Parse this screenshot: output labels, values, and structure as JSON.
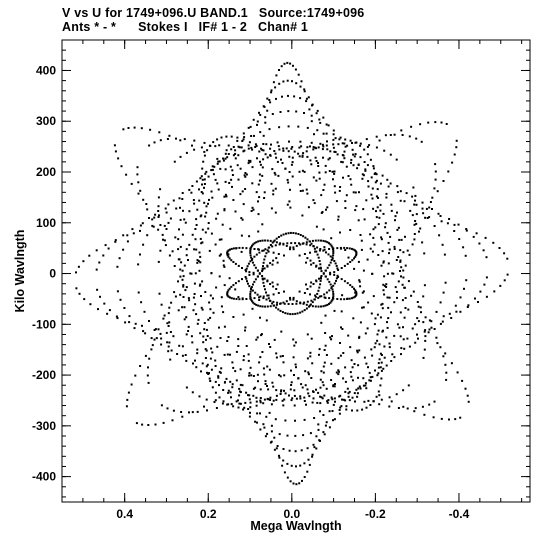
{
  "chart_data": {
    "type": "scatter",
    "title_line1": "V vs U for 1749+096.U BAND.1   Source:1749+096",
    "title_line2": "Ants * - *      Stokes I   IF# 1 - 2   Chan# 1",
    "xlabel": "Mega Wavlngth",
    "ylabel": "Kilo Wavlngth",
    "xlim": [
      0.55,
      -0.57
    ],
    "ylim": [
      -450,
      460
    ],
    "x_ticks": [
      {
        "value": 0.4,
        "label": "0.4"
      },
      {
        "value": 0.2,
        "label": "0.2"
      },
      {
        "value": 0.0,
        "label": "0.0"
      },
      {
        "value": -0.2,
        "label": "-0.2"
      },
      {
        "value": -0.4,
        "label": "-0.4"
      }
    ],
    "y_ticks": [
      {
        "value": 400,
        "label": "400"
      },
      {
        "value": 300,
        "label": "300"
      },
      {
        "value": 200,
        "label": "200"
      },
      {
        "value": 100,
        "label": "100"
      },
      {
        "value": 0,
        "label": "0"
      },
      {
        "value": -100,
        "label": "-100"
      },
      {
        "value": -200,
        "label": "-200"
      },
      {
        "value": -300,
        "label": "-300"
      },
      {
        "value": -400,
        "label": "-400"
      }
    ],
    "x_minor_step": 0.05,
    "y_minor_step": 20,
    "grid": false,
    "point_color": "#000000",
    "uv_tracks": {
      "description": "Elliptical u-v coverage arcs; each baseline traces an arc from hour angle hmin to hmax and its conjugate mirror (-u,-v).",
      "baselines": [
        {
          "a": 0.52,
          "b": 130,
          "rot": -1.5,
          "hmin": -1.45,
          "hmax": 1.45
        },
        {
          "a": 0.47,
          "b": 165,
          "rot": -1.5,
          "hmin": -1.45,
          "hmax": 1.45
        },
        {
          "a": 0.42,
          "b": 200,
          "rot": -1.5,
          "hmin": -1.45,
          "hmax": 1.45
        },
        {
          "a": 0.37,
          "b": 230,
          "rot": -1.5,
          "hmin": -1.45,
          "hmax": 1.45
        },
        {
          "a": 0.32,
          "b": 260,
          "rot": -1.5,
          "hmin": -1.45,
          "hmax": 1.45
        },
        {
          "a": 0.27,
          "b": 290,
          "rot": -1.5,
          "hmin": -1.45,
          "hmax": 1.45
        },
        {
          "a": 0.22,
          "b": 320,
          "rot": -1.5,
          "hmin": -1.45,
          "hmax": 1.45
        },
        {
          "a": 0.17,
          "b": 350,
          "rot": -1.5,
          "hmin": -1.45,
          "hmax": 1.45
        },
        {
          "a": 0.12,
          "b": 380,
          "rot": -1.5,
          "hmin": -1.45,
          "hmax": 1.45
        },
        {
          "a": 0.08,
          "b": 415,
          "rot": -1.5,
          "hmin": -1.45,
          "hmax": 1.45
        },
        {
          "a": 0.5,
          "b": 110,
          "rot": 33,
          "hmin": -1.4,
          "hmax": 1.4
        },
        {
          "a": 0.43,
          "b": 150,
          "rot": 33,
          "hmin": -1.4,
          "hmax": 1.4
        },
        {
          "a": 0.36,
          "b": 190,
          "rot": 33,
          "hmin": -1.4,
          "hmax": 1.4
        },
        {
          "a": 0.29,
          "b": 225,
          "rot": 33,
          "hmin": -1.4,
          "hmax": 1.4
        },
        {
          "a": 0.22,
          "b": 260,
          "rot": 33,
          "hmin": -1.4,
          "hmax": 1.4
        },
        {
          "a": 0.15,
          "b": 300,
          "rot": 33,
          "hmin": -1.4,
          "hmax": 1.4
        },
        {
          "a": 0.48,
          "b": 120,
          "rot": -36,
          "hmin": -1.4,
          "hmax": 1.4
        },
        {
          "a": 0.41,
          "b": 160,
          "rot": -36,
          "hmin": -1.4,
          "hmax": 1.4
        },
        {
          "a": 0.34,
          "b": 200,
          "rot": -36,
          "hmin": -1.4,
          "hmax": 1.4
        },
        {
          "a": 0.27,
          "b": 240,
          "rot": -36,
          "hmin": -1.4,
          "hmax": 1.4
        },
        {
          "a": 0.2,
          "b": 280,
          "rot": -36,
          "hmin": -1.4,
          "hmax": 1.4
        },
        {
          "a": 0.13,
          "b": 320,
          "rot": -36,
          "hmin": -1.4,
          "hmax": 1.4
        },
        {
          "a": 0.11,
          "b": 60,
          "rot": -1.5,
          "hmin": -1.45,
          "hmax": 1.45
        },
        {
          "a": 0.07,
          "b": 80,
          "rot": -1.5,
          "hmin": -1.45,
          "hmax": 1.45
        },
        {
          "a": 0.045,
          "b": 110,
          "rot": 62,
          "hmin": -1.4,
          "hmax": 1.4
        },
        {
          "a": 0.045,
          "b": 110,
          "rot": -62,
          "hmin": -1.4,
          "hmax": 1.4
        },
        {
          "a": 0.03,
          "b": 160,
          "rot": 75,
          "hmin": -1.4,
          "hmax": 1.4
        },
        {
          "a": 0.03,
          "b": 160,
          "rot": -75,
          "hmin": -1.4,
          "hmax": 1.4
        }
      ]
    }
  }
}
